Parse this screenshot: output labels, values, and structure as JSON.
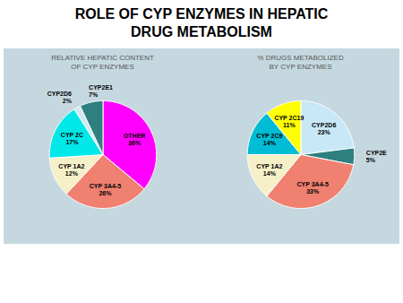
{
  "title": "ROLE OF CYP ENZYMES IN HEPATIC\nDRUG METABOLISM",
  "chart_data": [
    {
      "type": "pie",
      "subtitle": "RELATIVE HEPATIC CONTENT\nOF CYP ENZYMES",
      "categories": [
        "OTHER",
        "CYP 3A4-5",
        "CYP 1A2",
        "CYP 2C",
        "CYP2D6",
        "CYP2E1"
      ],
      "values": [
        36,
        26,
        12,
        17,
        2,
        7
      ],
      "value_labels": [
        "36%",
        "26%",
        "12%",
        "17%",
        "2%",
        "7%"
      ],
      "colors": [
        "#ff00ff",
        "#f08070",
        "#f5f0c8",
        "#00e8e8",
        "#d0e8f0",
        "#2e8080"
      ],
      "data_labels": true
    },
    {
      "type": "pie",
      "subtitle": "% DRUGS METABOLIZED\nBY CYP ENZYMES",
      "categories": [
        "CYP2D6",
        "CYP2E",
        "CYP 3A4-5",
        "CYP 1A2",
        "CYP 2C9",
        "CYP 2C19"
      ],
      "values": [
        23,
        5,
        33,
        14,
        14,
        11
      ],
      "value_labels": [
        "23%",
        "5%",
        "33%",
        "14%",
        "14%",
        "11%"
      ],
      "colors": [
        "#c8e8f8",
        "#2e8080",
        "#f08070",
        "#f5f0c8",
        "#00bcd4",
        "#ffff00"
      ],
      "data_labels": true
    }
  ]
}
